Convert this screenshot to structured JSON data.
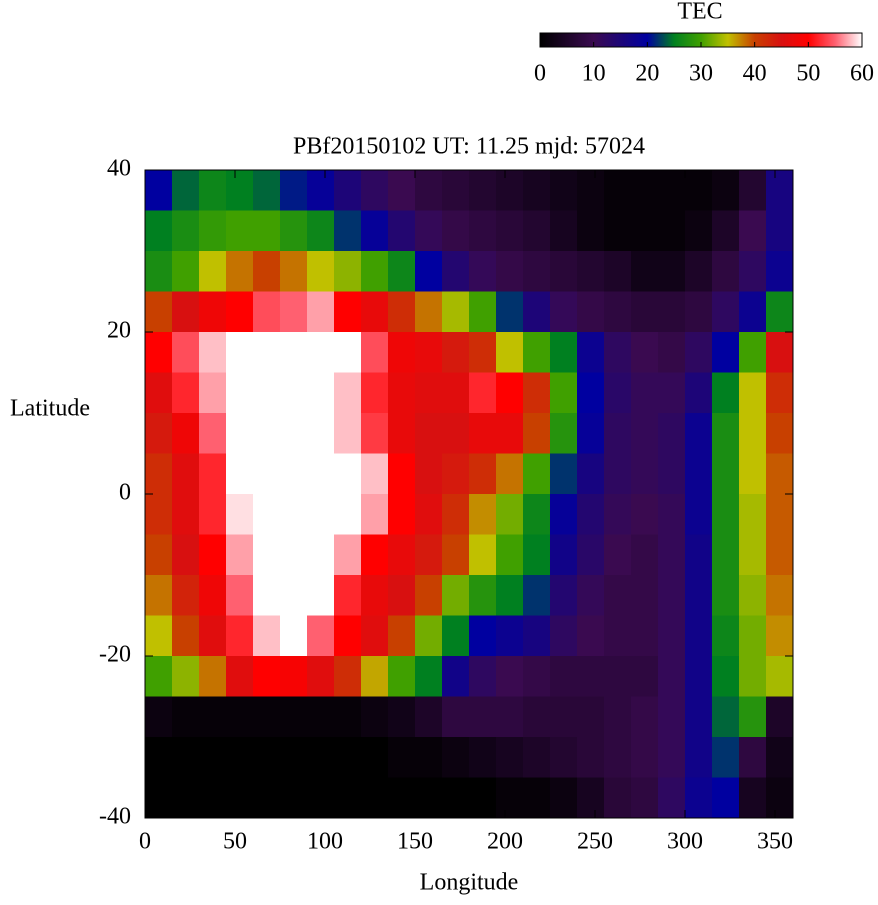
{
  "chart_data": {
    "type": "heatmap",
    "title": "PBf20150102  UT: 11.25  mjd: 57024",
    "x_label": "Longitude",
    "y_label": "Latitude",
    "colorbar_label": "TEC",
    "xlim": [
      0,
      360
    ],
    "xticks": [
      0,
      50,
      100,
      150,
      200,
      250,
      300,
      350
    ],
    "ylim": [
      -40,
      40
    ],
    "yticks": [
      -40,
      -20,
      0,
      20,
      40
    ],
    "clim": [
      0,
      60
    ],
    "cticks": [
      0,
      10,
      20,
      30,
      40,
      50,
      60
    ],
    "colorscale": [
      [
        0,
        "#000000"
      ],
      [
        10,
        "#3a0a50"
      ],
      [
        20,
        "#0000a0"
      ],
      [
        25,
        "#008020"
      ],
      [
        30,
        "#40a000"
      ],
      [
        35,
        "#c0c000"
      ],
      [
        40,
        "#c84000"
      ],
      [
        45,
        "#d81010"
      ],
      [
        50,
        "#ff0000"
      ],
      [
        55,
        "#ff6070"
      ],
      [
        60,
        "#ffffff"
      ]
    ],
    "x": [
      7.5,
      22.5,
      37.5,
      52.5,
      67.5,
      82.5,
      97.5,
      112.5,
      127.5,
      142.5,
      157.5,
      172.5,
      187.5,
      202.5,
      217.5,
      232.5,
      247.5,
      262.5,
      277.5,
      292.5,
      307.5,
      322.5,
      337.5,
      352.5
    ],
    "y": [
      37.5,
      32.5,
      27.5,
      22.5,
      17.5,
      12.5,
      7.5,
      2.5,
      -2.5,
      -7.5,
      -12.5,
      -17.5,
      -22.5,
      -27.5,
      -32.5,
      -37.5
    ],
    "z": [
      [
        20,
        24,
        26,
        25,
        24,
        21,
        19,
        15,
        12,
        10,
        8,
        7,
        6,
        5,
        4,
        3,
        2,
        1,
        1,
        1,
        1,
        2,
        6,
        16
      ],
      [
        25,
        27,
        29,
        30,
        30,
        28,
        26,
        22,
        19,
        14,
        11,
        9,
        8,
        7,
        6,
        4,
        2,
        1,
        1,
        1,
        2,
        5,
        10,
        16
      ],
      [
        27,
        30,
        35,
        38,
        40,
        38,
        35,
        33,
        30,
        26,
        20,
        14,
        11,
        9,
        8,
        7,
        6,
        5,
        3,
        3,
        5,
        8,
        12,
        18
      ],
      [
        40,
        45,
        48,
        50,
        54,
        55,
        57,
        50,
        47,
        42,
        38,
        34,
        30,
        22,
        15,
        11,
        9,
        8,
        7,
        7,
        8,
        12,
        18,
        26
      ],
      [
        50,
        54,
        58,
        60,
        60,
        60,
        60,
        60,
        54,
        48,
        47,
        44,
        42,
        35,
        30,
        25,
        18,
        12,
        10,
        9,
        12,
        20,
        30,
        45
      ],
      [
        46,
        52,
        57,
        60,
        60,
        60,
        60,
        58,
        52,
        47,
        46,
        46,
        52,
        50,
        42,
        30,
        20,
        13,
        11,
        11,
        15,
        25,
        35,
        42
      ],
      [
        44,
        48,
        55,
        60,
        60,
        60,
        60,
        58,
        53,
        47,
        45,
        45,
        47,
        47,
        40,
        28,
        19,
        12,
        11,
        12,
        18,
        27,
        35,
        40
      ],
      [
        42,
        46,
        52,
        60,
        60,
        60,
        60,
        60,
        58,
        50,
        45,
        44,
        42,
        38,
        30,
        22,
        16,
        12,
        11,
        12,
        18,
        27,
        35,
        39
      ],
      [
        42,
        46,
        52,
        59,
        60,
        60,
        60,
        60,
        57,
        50,
        46,
        42,
        37,
        32,
        26,
        19,
        14,
        11,
        10,
        11,
        18,
        27,
        34,
        39
      ],
      [
        40,
        45,
        50,
        57,
        60,
        60,
        60,
        57,
        50,
        47,
        44,
        40,
        35,
        30,
        25,
        17,
        13,
        10,
        9,
        11,
        17,
        27,
        34,
        39
      ],
      [
        38,
        43,
        48,
        55,
        60,
        60,
        60,
        52,
        47,
        45,
        40,
        32,
        28,
        25,
        22,
        14,
        11,
        9,
        9,
        11,
        17,
        27,
        33,
        38
      ],
      [
        35,
        40,
        46,
        52,
        58,
        60,
        55,
        50,
        46,
        40,
        32,
        25,
        20,
        18,
        16,
        12,
        10,
        9,
        9,
        11,
        17,
        26,
        32,
        37
      ],
      [
        30,
        33,
        38,
        46,
        50,
        49,
        46,
        42,
        36,
        30,
        25,
        17,
        12,
        10,
        9,
        8,
        8,
        8,
        8,
        11,
        17,
        25,
        32,
        34
      ],
      [
        2,
        1,
        1,
        1,
        1,
        1,
        1,
        1,
        2,
        3,
        5,
        8,
        8,
        8,
        7,
        7,
        7,
        8,
        9,
        11,
        17,
        24,
        28,
        5
      ],
      [
        0,
        0,
        0,
        0,
        0,
        0,
        0,
        0,
        0,
        1,
        1,
        2,
        3,
        4,
        5,
        6,
        7,
        8,
        9,
        11,
        17,
        22,
        8,
        3
      ],
      [
        0,
        0,
        0,
        0,
        0,
        0,
        0,
        0,
        0,
        0,
        0,
        0,
        0,
        1,
        1,
        2,
        4,
        7,
        8,
        12,
        18,
        20,
        4,
        2
      ]
    ]
  }
}
